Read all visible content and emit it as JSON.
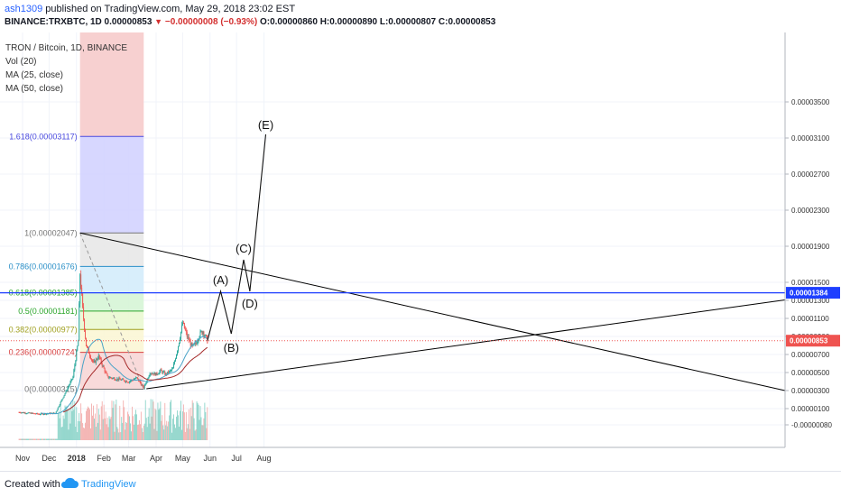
{
  "header": {
    "author": "ash1309",
    "published": " published on TradingView.com, May 29, 2018 23:02 EST",
    "symbol": "BINANCE:TRXBTC, 1D 0.00000853",
    "change_arrow": "▼",
    "change": "−0.00000008 (−0.93%)",
    "ohlc": "O:0.00000860 H:0.00000890 L:0.00000807 C:0.00000853"
  },
  "legend": [
    "TRON / Bitcoin, 1D, BINANCE",
    "Vol (20)",
    "MA (25, close)",
    "MA (50, close)"
  ],
  "footer": {
    "created": "Created with",
    "brand": "TradingView"
  },
  "colors": {
    "up": "#26a69a",
    "down": "#ef5350",
    "ma25": "#4aa3c7",
    "ma50": "#a52a2a",
    "line": "#000000",
    "hline": "#1e3fff"
  },
  "chart_data": {
    "type": "candlestick",
    "x_ticks": [
      "Nov",
      "Dec",
      "2018",
      "Feb",
      "Mar",
      "Apr",
      "May",
      "Jun",
      "Jul",
      "Aug"
    ],
    "y_ticks": [
      "0.00003500",
      "0.00003100",
      "0.00002700",
      "0.00002300",
      "0.00001900",
      "0.00001500",
      "0.00001300",
      "0.00001100",
      "0.00000900",
      "0.00000700",
      "0.00000500",
      "0.00000300",
      "0.00000100",
      "-0.00000080"
    ],
    "price_labels": [
      {
        "value": 1.384e-05,
        "text": "0.00001384",
        "color": "#1e3fff"
      },
      {
        "value": 8.53e-06,
        "text": "0.00000853",
        "color": "#ef5350"
      }
    ],
    "fib_levels": [
      {
        "ratio": "1.618",
        "text": "1.618(0.00003117)",
        "value": 3.117e-05,
        "color": "#4a4adf"
      },
      {
        "ratio": "1",
        "text": "1(0.00002047)",
        "value": 2.047e-05,
        "color": "#777777"
      },
      {
        "ratio": "0.786",
        "text": "0.786(0.00001676)",
        "value": 1.676e-05,
        "color": "#2a8fc7"
      },
      {
        "ratio": "0.618",
        "text": "0.618(0.00001385)",
        "value": 1.385e-05,
        "color": "#2aa52a"
      },
      {
        "ratio": "0.5",
        "text": "0.5(0.00001181)",
        "value": 1.181e-05,
        "color": "#2aa52a"
      },
      {
        "ratio": "0.382",
        "text": "0.382(0.00000977)",
        "value": 9.77e-06,
        "color": "#a0a020"
      },
      {
        "ratio": "0.236",
        "text": "0.236(0.00000724)",
        "value": 7.24e-06,
        "color": "#d84040"
      },
      {
        "ratio": "0",
        "text": "0(0.00000315)",
        "value": 3.15e-06,
        "color": "#777777"
      }
    ],
    "wave_labels": [
      "(A)",
      "(B)",
      "(C)",
      "(D)",
      "(E)"
    ],
    "wave_points": [
      {
        "date": "2018-06-13",
        "value": 1.4e-05
      },
      {
        "date": "2018-06-25",
        "value": 9.3e-06
      },
      {
        "date": "2018-07-09",
        "value": 1.75e-05
      },
      {
        "date": "2018-07-16",
        "value": 1.4e-05
      },
      {
        "date": "2018-08-03",
        "value": 3.14e-05
      }
    ],
    "price_path": [
      {
        "date": "2017-10-28",
        "value": 6e-07
      },
      {
        "date": "2017-11-20",
        "value": 4e-07
      },
      {
        "date": "2017-12-08",
        "value": 5e-07
      },
      {
        "date": "2017-12-18",
        "value": 2.5e-06
      },
      {
        "date": "2017-12-28",
        "value": 4.5e-06
      },
      {
        "date": "2018-01-03",
        "value": 8.5e-06
      },
      {
        "date": "2018-01-05",
        "value": 1.6e-05
      },
      {
        "date": "2018-01-08",
        "value": 1.2e-05
      },
      {
        "date": "2018-01-12",
        "value": 8e-06
      },
      {
        "date": "2018-01-20",
        "value": 6e-06
      },
      {
        "date": "2018-01-26",
        "value": 6.8e-06
      },
      {
        "date": "2018-02-05",
        "value": 4.5e-06
      },
      {
        "date": "2018-02-20",
        "value": 4.2e-06
      },
      {
        "date": "2018-03-01",
        "value": 4e-06
      },
      {
        "date": "2018-03-10",
        "value": 4.4e-06
      },
      {
        "date": "2018-03-18",
        "value": 3.3e-06
      },
      {
        "date": "2018-03-25",
        "value": 5e-06
      },
      {
        "date": "2018-04-01",
        "value": 4.8e-06
      },
      {
        "date": "2018-04-06",
        "value": 5.2e-06
      },
      {
        "date": "2018-04-12",
        "value": 4.8e-06
      },
      {
        "date": "2018-04-20",
        "value": 5.4e-06
      },
      {
        "date": "2018-04-26",
        "value": 8e-06
      },
      {
        "date": "2018-05-01",
        "value": 1.05e-05
      },
      {
        "date": "2018-05-06",
        "value": 9e-06
      },
      {
        "date": "2018-05-12",
        "value": 7.8e-06
      },
      {
        "date": "2018-05-16",
        "value": 8.2e-06
      },
      {
        "date": "2018-05-20",
        "value": 9.2e-06
      },
      {
        "date": "2018-05-24",
        "value": 9.6e-06
      },
      {
        "date": "2018-05-29",
        "value": 8.5e-06
      }
    ]
  }
}
